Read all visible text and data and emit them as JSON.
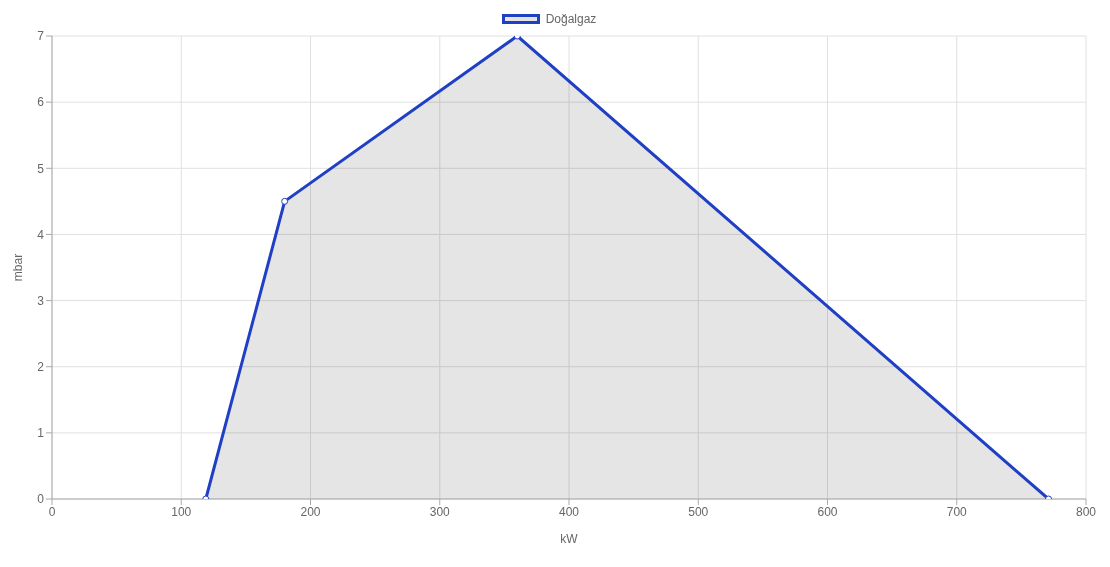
{
  "chart_data": {
    "type": "area",
    "xlabel": "kW",
    "ylabel": "mbar",
    "x": [
      119,
      180,
      360,
      771
    ],
    "series": [
      {
        "name": "Doğalgaz",
        "color": "#1f3fc4",
        "values": [
          0,
          4.5,
          7,
          0
        ]
      }
    ],
    "xlim": [
      0,
      800
    ],
    "xticks": [
      0,
      100,
      200,
      300,
      400,
      500,
      600,
      700,
      800
    ],
    "ylim": [
      0,
      7
    ],
    "yticks": [
      0,
      1,
      2,
      3,
      4,
      5,
      6,
      7
    ],
    "grid": true,
    "legend": "top",
    "marker": "circle",
    "line_style": "solid"
  }
}
